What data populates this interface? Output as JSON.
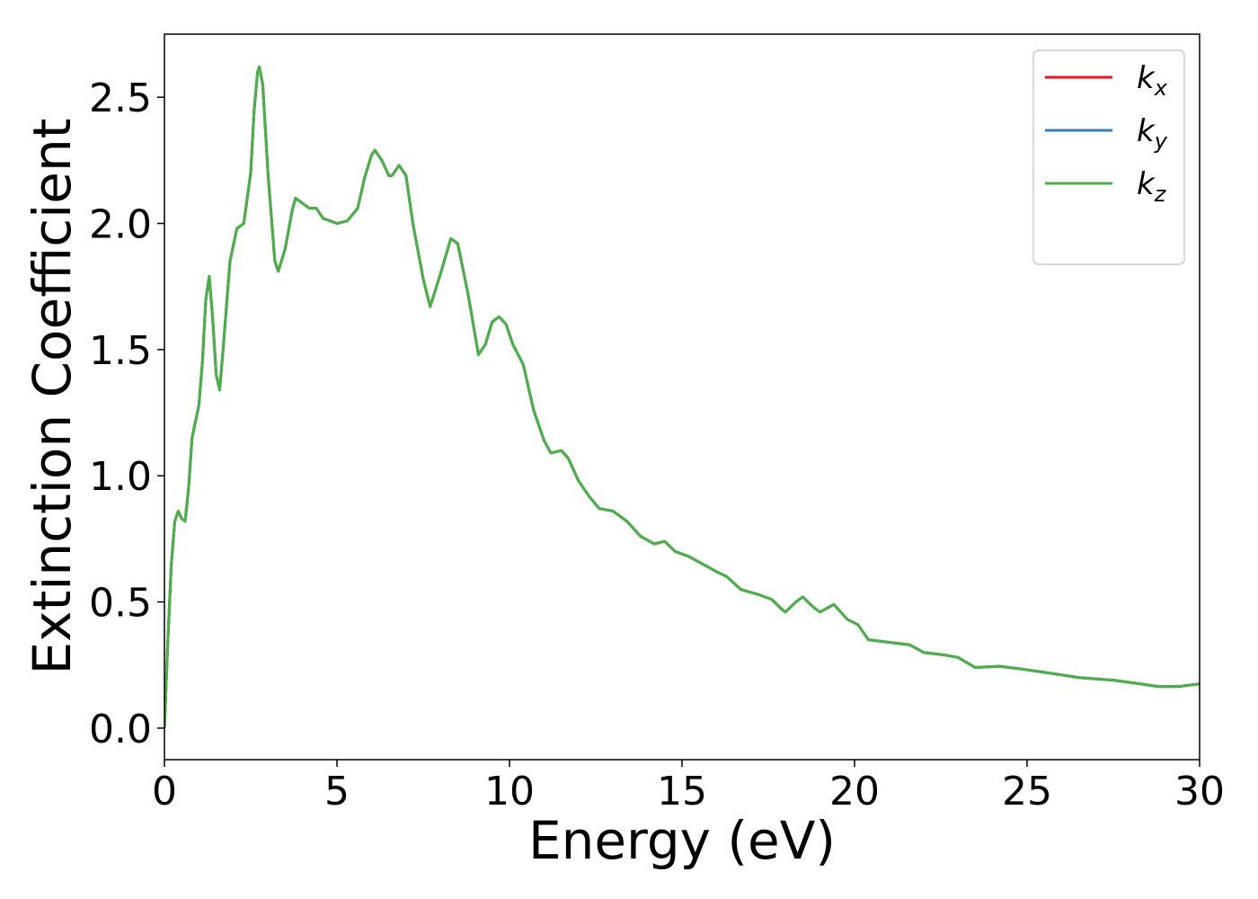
{
  "chart_data": {
    "type": "line",
    "x_label": "Energy (eV)",
    "y_label": "Extinction Coefficient",
    "xlim": [
      0,
      30
    ],
    "ylim": [
      -0.125,
      2.75
    ],
    "xticks": [
      0,
      5,
      10,
      15,
      20,
      25,
      30
    ],
    "yticks": [
      {
        "value": 0,
        "label": "0.0"
      },
      0.5,
      {
        "value": 1,
        "label": "1.0"
      },
      1.5,
      {
        "value": 2,
        "label": "2.0"
      },
      2.5
    ],
    "grid": false,
    "legend": "upper right",
    "x": [
      0,
      0.1,
      0.2,
      0.3,
      0.4,
      0.5,
      0.6,
      0.7,
      0.8,
      1.0,
      1.1,
      1.2,
      1.3,
      1.4,
      1.5,
      1.6,
      1.7,
      1.9,
      2.1,
      2.3,
      2.5,
      2.6,
      2.7,
      2.75,
      2.85,
      3.0,
      3.2,
      3.3,
      3.5,
      3.7,
      3.8,
      4.0,
      4.2,
      4.4,
      4.6,
      5.0,
      5.3,
      5.6,
      5.8,
      6.0,
      6.1,
      6.3,
      6.5,
      6.6,
      6.8,
      7.0,
      7.2,
      7.5,
      7.7,
      8.0,
      8.3,
      8.5,
      8.8,
      9.1,
      9.3,
      9.5,
      9.7,
      9.9,
      10.1,
      10.4,
      10.7,
      11.0,
      11.2,
      11.5,
      11.7,
      12.0,
      12.3,
      12.6,
      13.0,
      13.4,
      13.8,
      14.2,
      14.5,
      14.8,
      15.2,
      15.6,
      16.0,
      16.3,
      16.7,
      17.2,
      17.6,
      17.9,
      18.0,
      18.3,
      18.5,
      18.8,
      19.0,
      19.4,
      19.8,
      20.1,
      20.4,
      21.0,
      21.6,
      22.0,
      22.6,
      23.0,
      23.5,
      24.2,
      24.8,
      25.3,
      25.8,
      26.5,
      27.5,
      28.3,
      28.8,
      29.4,
      30.0
    ],
    "series": [
      {
        "name": "kx",
        "color": "#e41a1c",
        "values": [
          0,
          0.35,
          0.65,
          0.82,
          0.86,
          0.83,
          0.82,
          0.95,
          1.15,
          1.28,
          1.45,
          1.7,
          1.79,
          1.62,
          1.4,
          1.34,
          1.5,
          1.85,
          1.98,
          2.0,
          2.2,
          2.45,
          2.6,
          2.62,
          2.55,
          2.2,
          1.85,
          1.81,
          1.9,
          2.05,
          2.1,
          2.08,
          2.06,
          2.06,
          2.02,
          2.0,
          2.01,
          2.06,
          2.18,
          2.27,
          2.29,
          2.25,
          2.19,
          2.19,
          2.23,
          2.19,
          2.0,
          1.78,
          1.67,
          1.8,
          1.94,
          1.92,
          1.72,
          1.48,
          1.52,
          1.61,
          1.63,
          1.6,
          1.52,
          1.44,
          1.26,
          1.14,
          1.09,
          1.1,
          1.07,
          0.98,
          0.92,
          0.87,
          0.86,
          0.82,
          0.76,
          0.73,
          0.74,
          0.7,
          0.68,
          0.65,
          0.62,
          0.6,
          0.55,
          0.53,
          0.51,
          0.47,
          0.46,
          0.5,
          0.52,
          0.48,
          0.46,
          0.49,
          0.43,
          0.41,
          0.35,
          0.34,
          0.33,
          0.3,
          0.29,
          0.28,
          0.24,
          0.245,
          0.235,
          0.225,
          0.215,
          0.2,
          0.19,
          0.175,
          0.165,
          0.165,
          0.175
        ]
      },
      {
        "name": "ky",
        "color": "#377eb8",
        "values": [
          0,
          0.35,
          0.65,
          0.82,
          0.86,
          0.83,
          0.82,
          0.95,
          1.15,
          1.28,
          1.45,
          1.7,
          1.79,
          1.62,
          1.4,
          1.34,
          1.5,
          1.85,
          1.98,
          2.0,
          2.2,
          2.45,
          2.6,
          2.62,
          2.55,
          2.2,
          1.85,
          1.81,
          1.9,
          2.05,
          2.1,
          2.08,
          2.06,
          2.06,
          2.02,
          2.0,
          2.01,
          2.06,
          2.18,
          2.27,
          2.29,
          2.25,
          2.19,
          2.19,
          2.23,
          2.19,
          2.0,
          1.78,
          1.67,
          1.8,
          1.94,
          1.92,
          1.72,
          1.48,
          1.52,
          1.61,
          1.63,
          1.6,
          1.52,
          1.44,
          1.26,
          1.14,
          1.09,
          1.1,
          1.07,
          0.98,
          0.92,
          0.87,
          0.86,
          0.82,
          0.76,
          0.73,
          0.74,
          0.7,
          0.68,
          0.65,
          0.62,
          0.6,
          0.55,
          0.53,
          0.51,
          0.47,
          0.46,
          0.5,
          0.52,
          0.48,
          0.46,
          0.49,
          0.43,
          0.41,
          0.35,
          0.34,
          0.33,
          0.3,
          0.29,
          0.28,
          0.24,
          0.245,
          0.235,
          0.225,
          0.215,
          0.2,
          0.19,
          0.175,
          0.165,
          0.165,
          0.175
        ]
      },
      {
        "name": "kz",
        "color": "#4daf4a",
        "values": [
          0,
          0.35,
          0.65,
          0.82,
          0.86,
          0.83,
          0.82,
          0.95,
          1.15,
          1.28,
          1.45,
          1.7,
          1.79,
          1.62,
          1.4,
          1.34,
          1.5,
          1.85,
          1.98,
          2.0,
          2.2,
          2.45,
          2.6,
          2.62,
          2.55,
          2.2,
          1.85,
          1.81,
          1.9,
          2.05,
          2.1,
          2.08,
          2.06,
          2.06,
          2.02,
          2.0,
          2.01,
          2.06,
          2.18,
          2.27,
          2.29,
          2.25,
          2.19,
          2.19,
          2.23,
          2.19,
          2.0,
          1.78,
          1.67,
          1.8,
          1.94,
          1.92,
          1.72,
          1.48,
          1.52,
          1.61,
          1.63,
          1.6,
          1.52,
          1.44,
          1.26,
          1.14,
          1.09,
          1.1,
          1.07,
          0.98,
          0.92,
          0.87,
          0.86,
          0.82,
          0.76,
          0.73,
          0.74,
          0.7,
          0.68,
          0.65,
          0.62,
          0.6,
          0.55,
          0.53,
          0.51,
          0.47,
          0.46,
          0.5,
          0.52,
          0.48,
          0.46,
          0.49,
          0.43,
          0.41,
          0.35,
          0.34,
          0.33,
          0.3,
          0.29,
          0.28,
          0.24,
          0.245,
          0.235,
          0.225,
          0.215,
          0.2,
          0.19,
          0.175,
          0.165,
          0.165,
          0.175
        ]
      }
    ]
  }
}
